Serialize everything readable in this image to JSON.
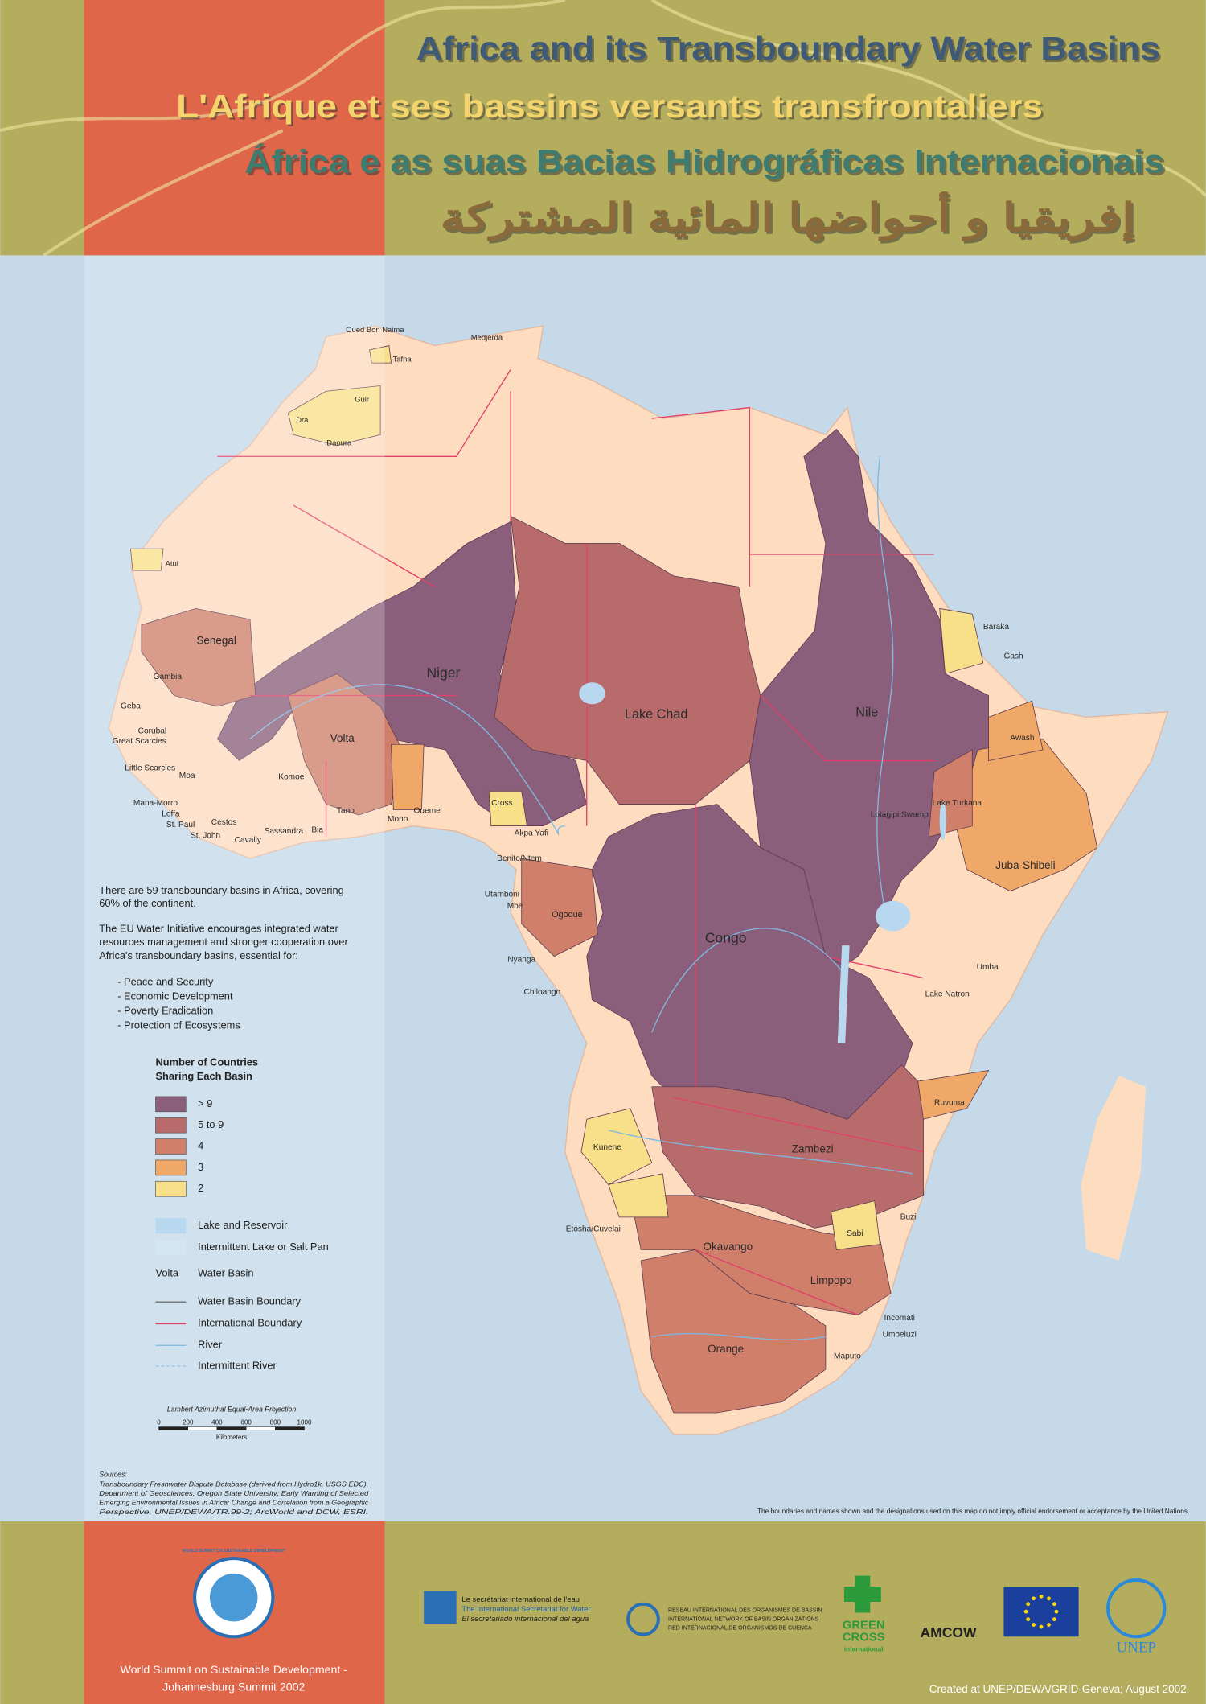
{
  "header": {
    "title_en": "Africa and its Transboundary Water Basins",
    "title_fr": "L'Afrique et ses bassins versants transfrontaliers",
    "title_pt": "África e as suas Bacias Hidrográficas Internacionais",
    "title_ar": "إفريقيا و أحواضها المائية المشتركة"
  },
  "map": {
    "basins": [
      "Oued Bon Naima",
      "Tafna",
      "Medjerda",
      "Guir",
      "Dra",
      "Daoura",
      "Atui",
      "Senegal",
      "Gambia",
      "Geba",
      "Corubal",
      "Great Scarcies",
      "Little Scarcies",
      "Moa",
      "Mana-Morro",
      "Loffa",
      "St. Paul",
      "Cestos",
      "St. John",
      "Cavally",
      "Sassandra",
      "Komoe",
      "Bia",
      "Tano",
      "Volta",
      "Niger",
      "Mono",
      "Oueme",
      "Cross",
      "Akpa Yafi",
      "Lake Chad",
      "Nile",
      "Baraka",
      "Gash",
      "Awash",
      "Lake Turkana",
      "Lotagipi Swamp",
      "Juba-Shibeli",
      "Benito/Ntem",
      "Utamboni",
      "Mbe",
      "Ogooue",
      "Congo",
      "Nyanga",
      "Chiloango",
      "Umba",
      "Lake Natron",
      "Ruvuma",
      "Zambezi",
      "Kunene",
      "Etosha/Cuvelai",
      "Buzi",
      "Sabi",
      "Okavango",
      "Limpopo",
      "Incomati",
      "Umbeluzi",
      "Orange",
      "Maputo"
    ]
  },
  "info": {
    "paragraph_1": [
      "There are 59 transboundary basins in Africa, covering",
      "60% of the continent."
    ],
    "paragraph_2": [
      "The EU Water Initiative encourages integrated water",
      "resources management and stronger cooperation over",
      "Africa's transboundary basins, essential for:"
    ],
    "goals": [
      "- Peace and Security",
      "- Economic Development",
      "- Poverty Eradication",
      "- Protection of Ecosystems"
    ]
  },
  "legend": {
    "title": [
      "Number of Countries",
      "Sharing Each Basin"
    ],
    "classes": [
      {
        "label": "> 9",
        "color": "#8b5f7b"
      },
      {
        "label": "5 to 9",
        "color": "#b86b6b"
      },
      {
        "label": "4",
        "color": "#d0806a"
      },
      {
        "label": "3",
        "color": "#f0a868"
      },
      {
        "label": "2",
        "color": "#f8e08a"
      }
    ],
    "symbols": [
      {
        "label": "Lake and Reservoir"
      },
      {
        "label": "Intermittent Lake or Salt Pan"
      },
      {
        "sample": "Volta",
        "label": "Water Basin"
      },
      {
        "label": "Water Basin Boundary"
      },
      {
        "label": "International Boundary"
      },
      {
        "label": "River"
      },
      {
        "label": "Intermittent River"
      }
    ]
  },
  "scale": {
    "projection": "Lambert Azimuthal Equal-Area Projection",
    "ticks": [
      0,
      200,
      400,
      600,
      800,
      1000
    ],
    "unit": "Kilometers"
  },
  "sources": {
    "heading": "Sources:",
    "lines": [
      "Transboundary Freshwater Dispute Database (derived from Hydro1k, USGS EDC),",
      "Department of Geosciences, Oregon State University; Early Warning of Selected",
      "Emerging Environmental Issues in Africa: Change and Correlation from a Geographic",
      "Perspective, UNEP/DEWA/TR.99-2; ArcWorld and DCW, ESRI."
    ]
  },
  "disclaimer": "The boundaries and names shown and the designations used on this map do not imply official endorsement or acceptance by the United Nations.",
  "footer": {
    "summit": [
      "World Summit on Sustainable Development -",
      "Johannesburg Summit 2002"
    ],
    "credit": "Created at UNEP/DEWA/GRID-Geneva; August 2002.",
    "wssd_logo": "WORLD SUMMIT ON SUSTAINABLE DEVELOPMENT",
    "secretariat": [
      "Le secrétariat international de l'eau",
      "The International Secretariat for Water",
      "El secretariado internacional del agua"
    ],
    "riob": [
      "RESEAU INTERNATIONAL DES ORGANISMES DE BASSIN",
      "INTERNATIONAL NETWORK OF BASIN ORGANIZATIONS",
      "RED INTERNACIONAL DE ORGANISMOS DE CUENCA"
    ],
    "green_cross": [
      "GREEN",
      "CROSS",
      "international"
    ],
    "amcow": "AMCOW",
    "unep": "UNEP"
  }
}
